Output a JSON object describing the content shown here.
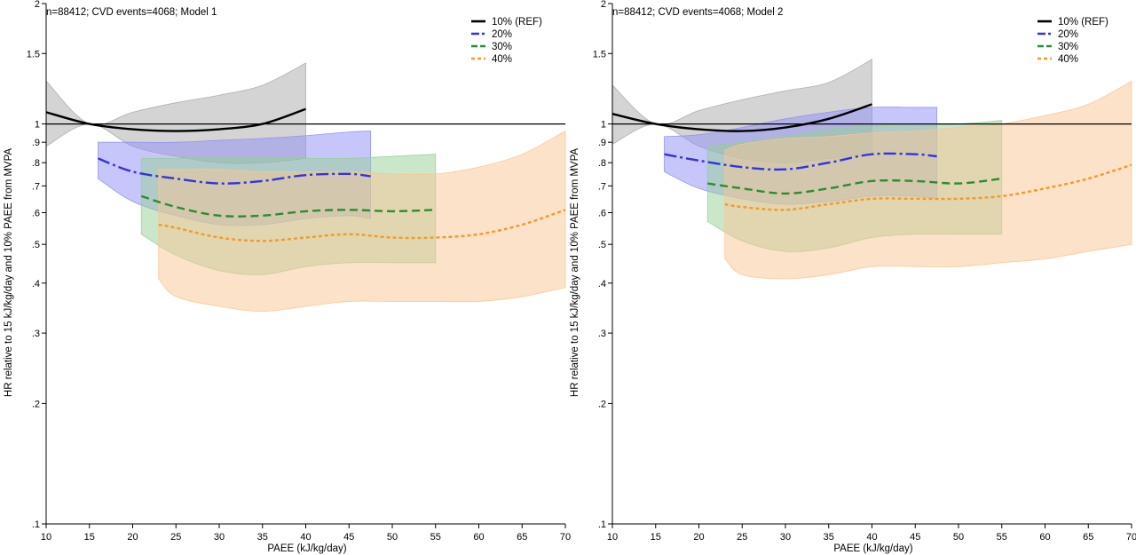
{
  "chart_data": [
    {
      "type": "line",
      "title": "n=88412; CVD events=4068; Model 1",
      "xlabel": "PAEE (kJ/kg/day)",
      "ylabel": "HR relative to 15 kJ/kg/day and 10% PAEE from MVPA",
      "xlim": [
        10,
        70
      ],
      "x_ticks": [
        10,
        15,
        20,
        25,
        30,
        35,
        40,
        45,
        50,
        55,
        60,
        65,
        70
      ],
      "x_tick_labels": [
        "10",
        "15",
        "20",
        "25",
        "30",
        "35",
        "40",
        "45",
        "50",
        "55",
        "60",
        "65",
        "70"
      ],
      "y_scale": "log",
      "ylim": [
        0.1,
        2
      ],
      "y_ticks": [
        0.1,
        0.2,
        0.3,
        0.4,
        0.5,
        0.6,
        0.7,
        0.8,
        0.9,
        1,
        1.5,
        2
      ],
      "y_tick_labels": [
        ".1",
        ".2",
        ".3",
        ".4",
        ".5",
        ".6",
        ".7",
        ".8",
        ".9",
        "1",
        "1.5",
        "2"
      ],
      "reference_line": 1,
      "legend_position": "top-right",
      "series": [
        {
          "name": "10% (REF)",
          "color": "#000000",
          "dash": "solid",
          "fill": "#a9a9a9",
          "x": [
            10,
            15,
            20,
            25,
            30,
            35,
            40
          ],
          "y": [
            1.07,
            1.0,
            0.97,
            0.96,
            0.97,
            1.0,
            1.09
          ],
          "lower": [
            0.88,
            1.0,
            0.88,
            0.83,
            0.8,
            0.8,
            0.82
          ],
          "upper": [
            1.28,
            1.0,
            1.07,
            1.13,
            1.18,
            1.25,
            1.42
          ]
        },
        {
          "name": "20%",
          "color": "#3333dd",
          "dash": "dashdot",
          "fill": "#8e8ef5",
          "x": [
            16,
            20,
            25,
            30,
            35,
            40,
            45,
            47.5
          ],
          "y": [
            0.82,
            0.76,
            0.73,
            0.71,
            0.72,
            0.745,
            0.75,
            0.74
          ],
          "lower": [
            0.73,
            0.64,
            0.59,
            0.56,
            0.56,
            0.58,
            0.59,
            0.58
          ],
          "upper": [
            0.9,
            0.9,
            0.9,
            0.91,
            0.92,
            0.935,
            0.955,
            0.96
          ]
        },
        {
          "name": "30%",
          "color": "#2e8b2e",
          "dash": "dashed",
          "fill": "#95cf95",
          "x": [
            21,
            25,
            30,
            35,
            40,
            45,
            50,
            55
          ],
          "y": [
            0.66,
            0.62,
            0.59,
            0.59,
            0.605,
            0.61,
            0.605,
            0.61
          ],
          "lower": [
            0.53,
            0.47,
            0.43,
            0.42,
            0.44,
            0.45,
            0.45,
            0.45
          ],
          "upper": [
            0.82,
            0.82,
            0.82,
            0.82,
            0.82,
            0.82,
            0.83,
            0.84
          ]
        },
        {
          "name": "40%",
          "color": "#f39a2c",
          "dash": "dotted",
          "fill": "#f8c593",
          "x": [
            23,
            25,
            30,
            35,
            40,
            45,
            50,
            55,
            60,
            65,
            70
          ],
          "y": [
            0.56,
            0.55,
            0.52,
            0.51,
            0.52,
            0.53,
            0.52,
            0.52,
            0.53,
            0.56,
            0.61
          ],
          "lower": [
            0.41,
            0.37,
            0.35,
            0.34,
            0.35,
            0.36,
            0.36,
            0.36,
            0.36,
            0.37,
            0.39
          ],
          "upper": [
            0.77,
            0.77,
            0.77,
            0.76,
            0.76,
            0.76,
            0.75,
            0.75,
            0.78,
            0.84,
            0.96
          ]
        }
      ]
    },
    {
      "type": "line",
      "title": "n=88412; CVD events=4068; Model 2",
      "xlabel": "PAEE (kJ/kg/day)",
      "ylabel": "HR relative to 15 kJ/kg/day and 10% PAEE from MVPA",
      "xlim": [
        10,
        70
      ],
      "x_ticks": [
        10,
        15,
        20,
        25,
        30,
        35,
        40,
        45,
        50,
        55,
        60,
        65,
        70
      ],
      "x_tick_labels": [
        "10",
        "15",
        "20",
        "25",
        "30",
        "35",
        "40",
        "45",
        "50",
        "55",
        "60",
        "65",
        "70"
      ],
      "y_scale": "log",
      "ylim": [
        0.1,
        2
      ],
      "y_ticks": [
        0.1,
        0.2,
        0.3,
        0.4,
        0.5,
        0.6,
        0.7,
        0.8,
        0.9,
        1,
        1.5,
        2
      ],
      "y_tick_labels": [
        ".1",
        ".2",
        ".3",
        ".4",
        ".5",
        ".6",
        ".7",
        ".8",
        ".9",
        "1",
        "1.5",
        "2"
      ],
      "reference_line": 1,
      "legend_position": "top-right",
      "series": [
        {
          "name": "10% (REF)",
          "color": "#000000",
          "dash": "solid",
          "fill": "#a9a9a9",
          "x": [
            10,
            15,
            20,
            25,
            30,
            35,
            40
          ],
          "y": [
            1.06,
            1.0,
            0.97,
            0.96,
            0.98,
            1.03,
            1.12
          ],
          "lower": [
            0.89,
            1.0,
            0.88,
            0.82,
            0.8,
            0.82,
            0.84
          ],
          "upper": [
            1.25,
            1.0,
            1.08,
            1.15,
            1.21,
            1.27,
            1.45
          ]
        },
        {
          "name": "20%",
          "color": "#3333dd",
          "dash": "dashdot",
          "fill": "#8e8ef5",
          "x": [
            16,
            20,
            25,
            30,
            35,
            40,
            45,
            47.5
          ],
          "y": [
            0.84,
            0.81,
            0.78,
            0.77,
            0.8,
            0.84,
            0.84,
            0.83
          ],
          "lower": [
            0.76,
            0.69,
            0.65,
            0.63,
            0.64,
            0.66,
            0.66,
            0.65
          ],
          "upper": [
            0.93,
            0.94,
            0.98,
            1.03,
            1.07,
            1.1,
            1.1,
            1.1
          ]
        },
        {
          "name": "30%",
          "color": "#2e8b2e",
          "dash": "dashed",
          "fill": "#95cf95",
          "x": [
            21,
            25,
            30,
            35,
            40,
            45,
            50,
            55
          ],
          "y": [
            0.71,
            0.69,
            0.67,
            0.69,
            0.72,
            0.72,
            0.71,
            0.73
          ],
          "lower": [
            0.57,
            0.51,
            0.48,
            0.49,
            0.52,
            0.53,
            0.53,
            0.53
          ],
          "upper": [
            0.88,
            0.9,
            0.93,
            0.97,
            0.99,
            1.0,
            1.0,
            1.02
          ]
        },
        {
          "name": "40%",
          "color": "#f39a2c",
          "dash": "dotted",
          "fill": "#f8c593",
          "x": [
            23,
            25,
            30,
            35,
            40,
            45,
            50,
            55,
            60,
            65,
            70
          ],
          "y": [
            0.63,
            0.62,
            0.61,
            0.63,
            0.65,
            0.65,
            0.65,
            0.66,
            0.69,
            0.73,
            0.79
          ],
          "lower": [
            0.46,
            0.42,
            0.41,
            0.42,
            0.44,
            0.44,
            0.44,
            0.45,
            0.46,
            0.48,
            0.5
          ],
          "upper": [
            0.86,
            0.89,
            0.92,
            0.93,
            0.95,
            0.96,
            0.98,
            1.0,
            1.05,
            1.12,
            1.28
          ]
        }
      ]
    }
  ]
}
